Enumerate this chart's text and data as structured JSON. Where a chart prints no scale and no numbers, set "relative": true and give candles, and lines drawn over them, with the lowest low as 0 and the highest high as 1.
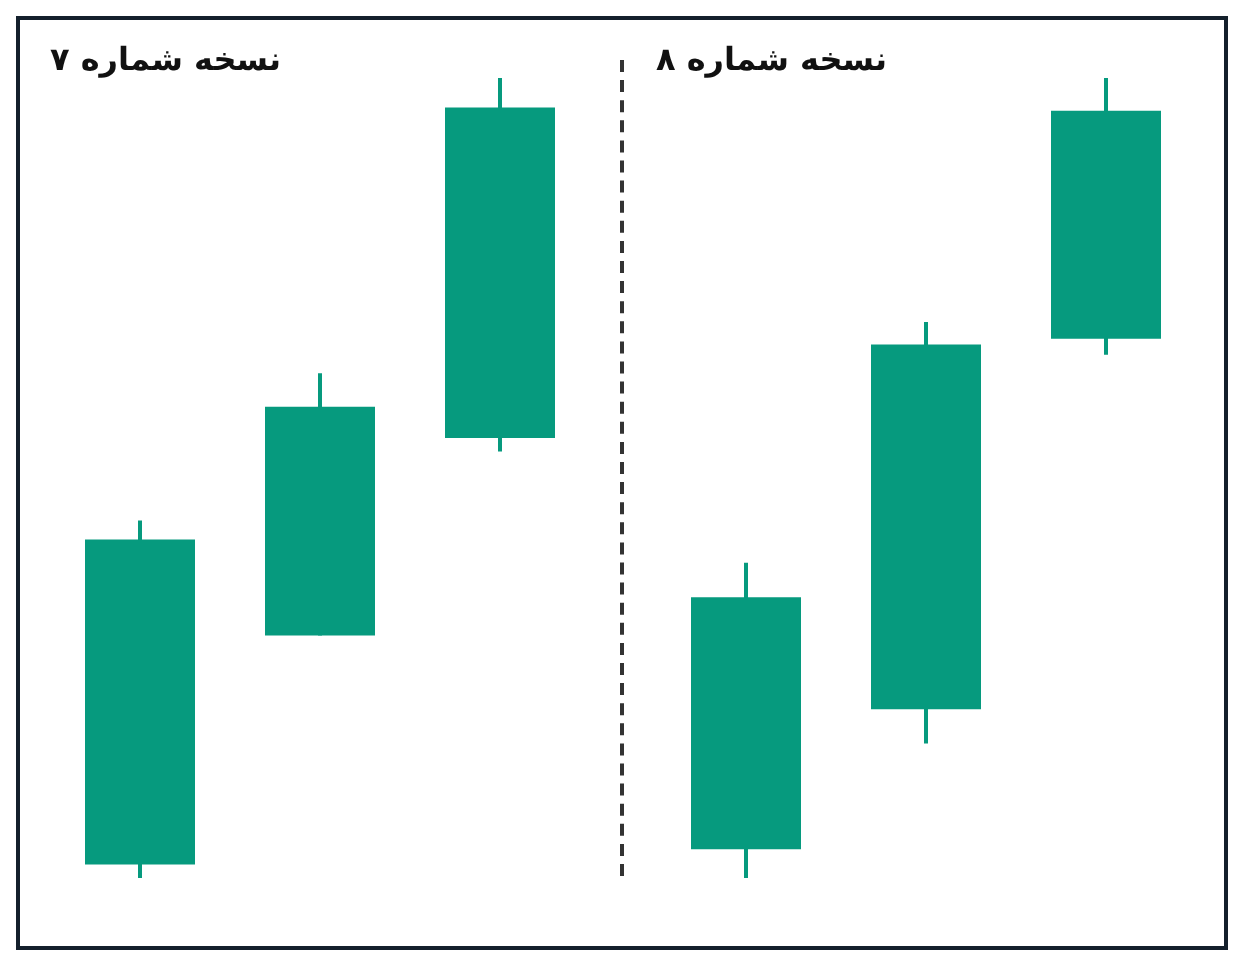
{
  "chart_data": [
    {
      "type": "candlestick",
      "title": "نسخه شماره ۷",
      "categories": [
        null,
        null,
        null
      ],
      "relative": true,
      "color": "#069a7e",
      "ohlc": [
        [
          0.017,
          0.447,
          0,
          0.423
        ],
        [
          0.303,
          0.631,
          0.303,
          0.589
        ],
        [
          0.55,
          1,
          0.533,
          0.963
        ]
      ]
    },
    {
      "type": "candlestick",
      "title": "نسخه شماره ۸",
      "categories": [
        null,
        null,
        null
      ],
      "relative": true,
      "color": "#069a7e",
      "ohlc": [
        [
          0.036,
          0.394,
          0,
          0.351
        ],
        [
          0.211,
          0.695,
          0.168,
          0.667
        ],
        [
          0.674,
          1,
          0.654,
          0.959
        ]
      ]
    }
  ]
}
